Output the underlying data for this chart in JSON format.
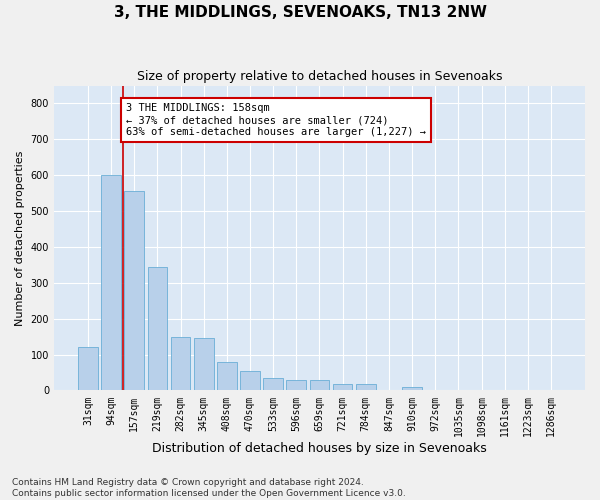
{
  "title": "3, THE MIDDLINGS, SEVENOAKS, TN13 2NW",
  "subtitle": "Size of property relative to detached houses in Sevenoaks",
  "xlabel": "Distribution of detached houses by size in Sevenoaks",
  "ylabel": "Number of detached properties",
  "bar_color": "#b8d0ea",
  "bar_edge_color": "#6aaed6",
  "background_color": "#dce8f5",
  "grid_color": "#ffffff",
  "categories": [
    "31sqm",
    "94sqm",
    "157sqm",
    "219sqm",
    "282sqm",
    "345sqm",
    "408sqm",
    "470sqm",
    "533sqm",
    "596sqm",
    "659sqm",
    "721sqm",
    "784sqm",
    "847sqm",
    "910sqm",
    "972sqm",
    "1035sqm",
    "1098sqm",
    "1161sqm",
    "1223sqm",
    "1286sqm"
  ],
  "values": [
    120,
    600,
    555,
    345,
    150,
    145,
    80,
    55,
    35,
    30,
    30,
    18,
    18,
    0,
    10,
    0,
    0,
    0,
    0,
    0,
    0
  ],
  "annotation_text": "3 THE MIDDLINGS: 158sqm\n← 37% of detached houses are smaller (724)\n63% of semi-detached houses are larger (1,227) →",
  "annotation_box_color": "#ffffff",
  "annotation_box_edge_color": "#cc0000",
  "vline_x_index": 2,
  "vline_color": "#cc0000",
  "ylim": [
    0,
    850
  ],
  "yticks": [
    0,
    100,
    200,
    300,
    400,
    500,
    600,
    700,
    800
  ],
  "footnote": "Contains HM Land Registry data © Crown copyright and database right 2024.\nContains public sector information licensed under the Open Government Licence v3.0.",
  "title_fontsize": 11,
  "subtitle_fontsize": 9,
  "xlabel_fontsize": 9,
  "ylabel_fontsize": 8,
  "tick_fontsize": 7,
  "annotation_fontsize": 7.5,
  "footnote_fontsize": 6.5
}
